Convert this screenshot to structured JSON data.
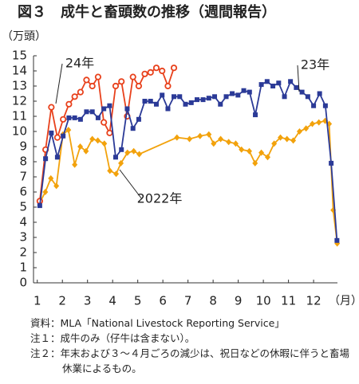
{
  "chart_data": {
    "type": "line",
    "title": "図３　成牛と畜頭数の推移（週間報告）",
    "y_label": "（万頭）",
    "x_label": "（月）",
    "xlim": [
      0.85,
      12.95
    ],
    "xticks": [
      1,
      2,
      3,
      4,
      5,
      6,
      7,
      8,
      9,
      10,
      11,
      12
    ],
    "ylim": [
      0,
      15
    ],
    "yticks": [
      0,
      1,
      2,
      3,
      4,
      5,
      6,
      7,
      8,
      9,
      10,
      11,
      12,
      13,
      14,
      15
    ],
    "series": [
      {
        "name": "2022年",
        "color": "#f2a20c",
        "marker": "diamond",
        "x": [
          1.1,
          1.32,
          1.54,
          1.76,
          2.02,
          2.24,
          2.49,
          2.71,
          2.94,
          3.19,
          3.41,
          3.67,
          3.89,
          4.14,
          4.33,
          4.59,
          4.84,
          5.06,
          6.56,
          7.06,
          7.48,
          7.83,
          8.02,
          8.3,
          8.62,
          8.9,
          9.13,
          9.44,
          9.67,
          9.92,
          10.17,
          10.43,
          10.68,
          10.94,
          11.19,
          11.44,
          11.7,
          11.95,
          12.21,
          12.46,
          12.62,
          12.78,
          12.94
        ],
        "values": [
          5.3,
          6.0,
          6.9,
          6.4,
          9.8,
          10.1,
          7.8,
          9.0,
          8.7,
          9.5,
          9.4,
          9.2,
          7.4,
          7.2,
          7.9,
          8.6,
          8.7,
          8.5,
          9.6,
          9.5,
          9.7,
          9.8,
          9.2,
          9.5,
          9.3,
          9.2,
          8.8,
          8.7,
          7.9,
          8.6,
          8.3,
          9.2,
          9.6,
          9.5,
          9.4,
          10.0,
          10.2,
          10.5,
          10.6,
          10.7,
          10.5,
          4.8,
          2.6
        ]
      },
      {
        "name": "24年",
        "color": "#e8411c",
        "marker": "circle",
        "x": [
          1.1,
          1.33,
          1.56,
          1.8,
          2.03,
          2.26,
          2.49,
          2.72,
          2.96,
          3.19,
          3.42,
          3.65,
          3.88,
          4.12,
          4.35,
          4.58,
          4.81,
          5.04,
          5.28,
          5.51,
          5.74,
          5.97,
          6.2,
          6.44
        ],
        "values": [
          5.4,
          8.8,
          11.6,
          9.6,
          10.8,
          11.8,
          12.3,
          12.6,
          13.4,
          13.0,
          13.6,
          10.6,
          9.9,
          13.0,
          13.3,
          11.0,
          13.6,
          13.0,
          13.8,
          13.9,
          14.2,
          14.0,
          13.0,
          14.2
        ]
      },
      {
        "name": "23年",
        "color": "#2b3a97",
        "marker": "square",
        "x": [
          1.1,
          1.33,
          1.56,
          1.8,
          2.03,
          2.26,
          2.49,
          2.72,
          2.96,
          3.19,
          3.42,
          3.65,
          3.88,
          4.12,
          4.35,
          4.58,
          4.81,
          5.04,
          5.28,
          5.51,
          5.74,
          5.97,
          6.2,
          6.44,
          6.67,
          6.9,
          7.13,
          7.36,
          7.6,
          7.83,
          8.06,
          8.29,
          8.52,
          8.76,
          8.99,
          9.22,
          9.45,
          9.68,
          9.92,
          10.15,
          10.38,
          10.61,
          10.84,
          11.08,
          11.31,
          11.54,
          11.77,
          12.0,
          12.24,
          12.47,
          12.7,
          12.93
        ],
        "values": [
          5.1,
          8.2,
          9.9,
          8.3,
          9.7,
          10.9,
          10.9,
          10.8,
          11.3,
          11.3,
          10.9,
          11.5,
          11.7,
          8.3,
          8.8,
          11.5,
          10.2,
          10.8,
          12.0,
          12.0,
          11.8,
          12.4,
          11.5,
          12.3,
          12.3,
          11.8,
          11.9,
          12.1,
          12.1,
          12.2,
          12.3,
          11.8,
          12.3,
          12.5,
          12.4,
          12.7,
          12.6,
          11.1,
          13.1,
          13.3,
          13.0,
          13.2,
          12.3,
          13.3,
          12.9,
          12.6,
          12.3,
          11.7,
          12.5,
          11.7,
          7.9,
          2.8
        ]
      }
    ]
  },
  "notes": [
    "資料：MLA「National Livestock Reporting Service」",
    "注１：成牛のみ（仔牛は含まない）。",
    "注２：年末および３～４月ごろの減少は、祝日などの休暇に伴うと畜場休業によるもの。"
  ]
}
